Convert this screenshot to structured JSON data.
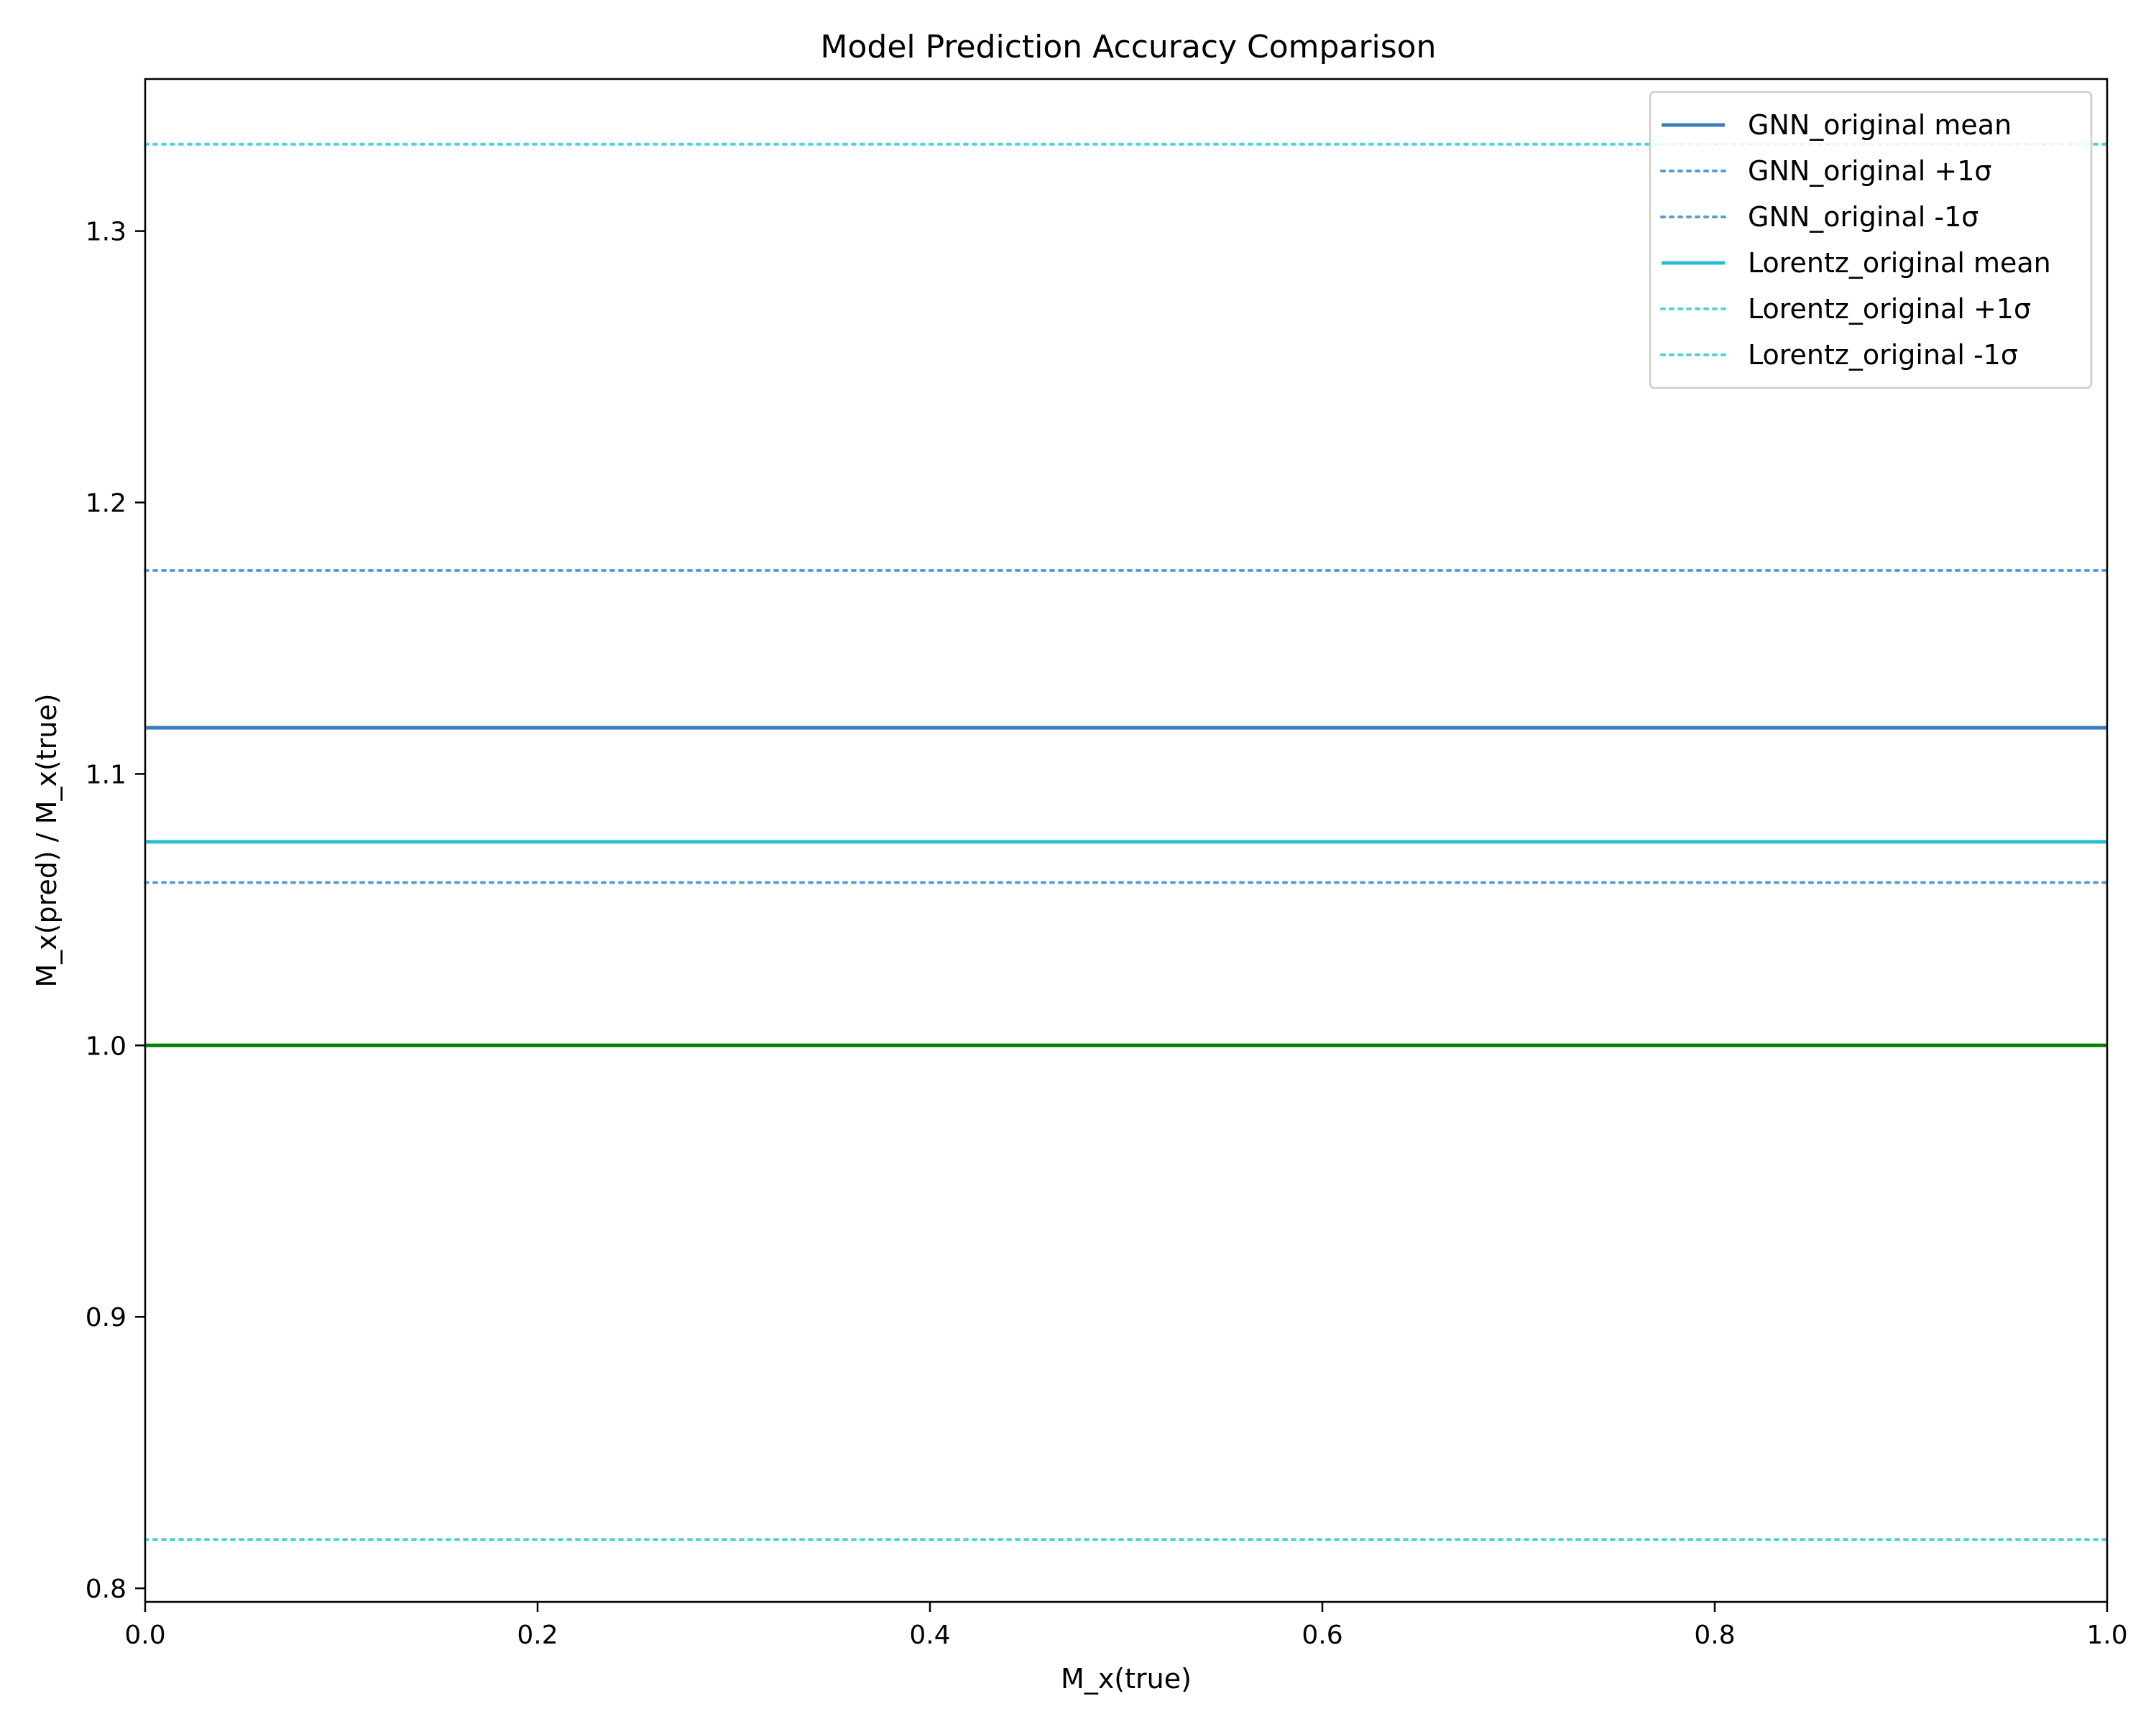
{
  "chart_data": {
    "type": "line",
    "title": "Model Prediction Accuracy Comparison",
    "xlabel": "M_x(true)",
    "ylabel": "M_x(pred) / M_x(true)",
    "xlim": [
      0.0,
      1.0
    ],
    "ylim": [
      0.795,
      1.356
    ],
    "xticks": [
      "0.0",
      "0.2",
      "0.4",
      "0.6",
      "0.8",
      "1.0"
    ],
    "yticks": [
      "0.8",
      "0.9",
      "1.0",
      "1.1",
      "1.2",
      "1.3"
    ],
    "grid": false,
    "legend_position": "top-right",
    "series": [
      {
        "name": "GNN_original mean",
        "style": "solid",
        "color": "#3a7ebf",
        "y": 1.117,
        "in_legend": true
      },
      {
        "name": "GNN_original +1σ",
        "style": "dotted",
        "color": "#5b9bd5",
        "y": 1.175,
        "in_legend": true
      },
      {
        "name": "GNN_original -1σ",
        "style": "dotted",
        "color": "#5b9bd5",
        "y": 1.06,
        "in_legend": true
      },
      {
        "name": "Lorentz_original mean",
        "style": "solid",
        "color": "#2bbcd4",
        "y": 1.075,
        "in_legend": true
      },
      {
        "name": "Lorentz_original +1σ",
        "style": "dotted",
        "color": "#4fd3dc",
        "y": 1.332,
        "in_legend": true
      },
      {
        "name": "Lorentz_original -1σ",
        "style": "dotted",
        "color": "#4fd3dc",
        "y": 0.818,
        "in_legend": true
      },
      {
        "name": "",
        "style": "solid",
        "color": "#008000",
        "y": 1.0,
        "in_legend": false
      }
    ]
  }
}
